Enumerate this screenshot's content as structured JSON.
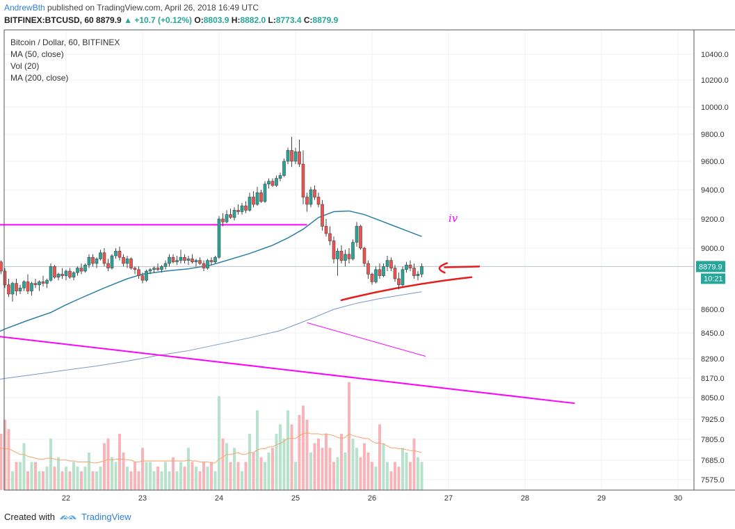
{
  "header": {
    "author": "AndrewBth",
    "published": "published on TradingView.com, April 26, 2018 16:49 UTC",
    "symbol": "BITFINEX:BTCUSD, 60",
    "price": "8879.9",
    "arrow": "▲",
    "change": "+10.7 (+0.12%)",
    "o_label": "O:",
    "o": "8803.9",
    "h_label": "H:",
    "h": "8882.0",
    "l_label": "L:",
    "l": "8773.4",
    "c_label": "C:",
    "c": "8879.9"
  },
  "legend": {
    "title": "Bitcoin / Dollar, 60, BITFINEX",
    "ma50": "MA (50, close)",
    "vol": "Vol (20)",
    "ma200": "MA (200, close)"
  },
  "footer": {
    "created_with": "Created with",
    "brand": "TradingView"
  },
  "annotation_text": "iv",
  "price_badge": "8879.9",
  "time_badge": "10:21",
  "colors": {
    "up": "#26a69a",
    "down": "#ef5350",
    "ma50": "#2a7fa8",
    "ma200": "#7b96c8",
    "magenta": "#ff00ff",
    "red_pen": "#e81a1a",
    "vol_up": "#b7e3cd",
    "vol_down": "#f7b5b9"
  },
  "chart_data": {
    "type": "candlestick",
    "title": "Bitcoin / Dollar, 60, BITFINEX",
    "y_tick_labels": [
      "10400.0",
      "10200.0",
      "10000.0",
      "9800.0",
      "9600.0",
      "9400.0",
      "9200.0",
      "9000.0",
      "8600.0",
      "8450.0",
      "8290.0",
      "8170.0",
      "8050.0",
      "7925.0",
      "7805.0",
      "7685.0",
      "7575.0"
    ],
    "y_ticks": [
      10400,
      10200,
      10000,
      9800,
      9600,
      9400,
      9200,
      9000,
      8600,
      8450,
      8290,
      8170,
      8050,
      7925,
      7805,
      7685,
      7575
    ],
    "x_tick_labels": [
      "22",
      "23",
      "24",
      "25",
      "26",
      "27",
      "28",
      "29",
      "30"
    ],
    "x_ticks": [
      22,
      23,
      24,
      25,
      26,
      27,
      28,
      29,
      30
    ],
    "xlim": [
      21.0,
      30.25
    ],
    "last_price": 8879.9,
    "candles": [
      [
        21.05,
        8870,
        8900,
        8820,
        8890
      ],
      [
        21.1,
        8890,
        8950,
        8860,
        8910
      ],
      [
        21.15,
        8910,
        8920,
        8830,
        8850
      ],
      [
        21.2,
        8850,
        8870,
        8740,
        8760
      ],
      [
        21.25,
        8760,
        8800,
        8680,
        8700
      ],
      [
        21.3,
        8700,
        8780,
        8650,
        8770
      ],
      [
        21.35,
        8770,
        8800,
        8690,
        8720
      ],
      [
        21.4,
        8720,
        8760,
        8700,
        8740
      ],
      [
        21.45,
        8740,
        8790,
        8720,
        8780
      ],
      [
        21.5,
        8780,
        8830,
        8700,
        8720
      ],
      [
        21.55,
        8720,
        8780,
        8690,
        8770
      ],
      [
        21.6,
        8770,
        8800,
        8740,
        8760
      ],
      [
        21.65,
        8760,
        8790,
        8720,
        8780
      ],
      [
        21.7,
        8780,
        8820,
        8750,
        8770
      ],
      [
        21.75,
        8770,
        8800,
        8740,
        8790
      ],
      [
        21.8,
        8790,
        8900,
        8780,
        8880
      ],
      [
        21.85,
        8880,
        8890,
        8800,
        8810
      ],
      [
        21.9,
        8810,
        8840,
        8790,
        8830
      ],
      [
        21.95,
        8830,
        8870,
        8800,
        8820
      ],
      [
        22.0,
        8820,
        8860,
        8790,
        8850
      ],
      [
        22.05,
        8850,
        8870,
        8800,
        8810
      ],
      [
        22.1,
        8810,
        8850,
        8790,
        8840
      ],
      [
        22.15,
        8840,
        8880,
        8820,
        8870
      ],
      [
        22.2,
        8870,
        8900,
        8830,
        8850
      ],
      [
        22.25,
        8850,
        8900,
        8840,
        8890
      ],
      [
        22.3,
        8890,
        8960,
        8870,
        8940
      ],
      [
        22.35,
        8940,
        8960,
        8880,
        8900
      ],
      [
        22.4,
        8900,
        8940,
        8870,
        8930
      ],
      [
        22.45,
        8930,
        8990,
        8920,
        8970
      ],
      [
        22.5,
        8970,
        9000,
        8880,
        8900
      ],
      [
        22.55,
        8900,
        8930,
        8850,
        8870
      ],
      [
        22.6,
        8870,
        8960,
        8860,
        8950
      ],
      [
        22.65,
        8950,
        9000,
        8930,
        8980
      ],
      [
        22.7,
        8980,
        9010,
        8920,
        8940
      ],
      [
        22.75,
        8940,
        8960,
        8880,
        8900
      ],
      [
        22.8,
        8900,
        8950,
        8870,
        8930
      ],
      [
        22.85,
        8930,
        8940,
        8860,
        8870
      ],
      [
        22.9,
        8870,
        8880,
        8830,
        8860
      ],
      [
        22.95,
        8860,
        8880,
        8800,
        8820
      ],
      [
        23.0,
        8820,
        8840,
        8770,
        8790
      ],
      [
        23.05,
        8790,
        8860,
        8780,
        8850
      ],
      [
        23.1,
        8850,
        8870,
        8830,
        8860
      ],
      [
        23.15,
        8860,
        8880,
        8840,
        8870
      ],
      [
        23.2,
        8870,
        8900,
        8850,
        8860
      ],
      [
        23.25,
        8860,
        8890,
        8840,
        8880
      ],
      [
        23.3,
        8880,
        8920,
        8860,
        8900
      ],
      [
        23.35,
        8900,
        8960,
        8880,
        8940
      ],
      [
        23.4,
        8940,
        8960,
        8900,
        8910
      ],
      [
        23.45,
        8910,
        8950,
        8890,
        8920
      ],
      [
        23.5,
        8920,
        8990,
        8900,
        8940
      ],
      [
        23.55,
        8940,
        8960,
        8900,
        8920
      ],
      [
        23.6,
        8920,
        8950,
        8890,
        8930
      ],
      [
        23.65,
        8930,
        8960,
        8900,
        8910
      ],
      [
        23.7,
        8910,
        8930,
        8880,
        8920
      ],
      [
        23.75,
        8920,
        8940,
        8890,
        8900
      ],
      [
        23.8,
        8900,
        8920,
        8850,
        8870
      ],
      [
        23.85,
        8870,
        8930,
        8860,
        8920
      ],
      [
        23.9,
        8920,
        8940,
        8890,
        8910
      ],
      [
        23.95,
        8910,
        8950,
        8900,
        8940
      ],
      [
        24.0,
        8940,
        9220,
        8930,
        9200
      ],
      [
        24.05,
        9200,
        9240,
        9150,
        9180
      ],
      [
        24.1,
        9180,
        9260,
        9170,
        9230
      ],
      [
        24.15,
        9230,
        9270,
        9200,
        9210
      ],
      [
        24.2,
        9210,
        9280,
        9190,
        9260
      ],
      [
        24.25,
        9260,
        9300,
        9230,
        9250
      ],
      [
        24.3,
        9250,
        9310,
        9230,
        9290
      ],
      [
        24.35,
        9290,
        9320,
        9240,
        9260
      ],
      [
        24.4,
        9260,
        9380,
        9250,
        9350
      ],
      [
        24.45,
        9350,
        9390,
        9280,
        9300
      ],
      [
        24.5,
        9300,
        9420,
        9290,
        9380
      ],
      [
        24.55,
        9380,
        9400,
        9310,
        9320
      ],
      [
        24.6,
        9320,
        9460,
        9310,
        9440
      ],
      [
        24.65,
        9440,
        9480,
        9410,
        9460
      ],
      [
        24.7,
        9460,
        9480,
        9420,
        9430
      ],
      [
        24.75,
        9430,
        9500,
        9420,
        9480
      ],
      [
        24.8,
        9480,
        9520,
        9460,
        9500
      ],
      [
        24.85,
        9500,
        9620,
        9490,
        9600
      ],
      [
        24.9,
        9600,
        9700,
        9580,
        9680
      ],
      [
        24.95,
        9680,
        9780,
        9560,
        9600
      ],
      [
        25.0,
        9600,
        9700,
        9580,
        9670
      ],
      [
        25.05,
        9670,
        9760,
        9560,
        9580
      ],
      [
        25.1,
        9580,
        9680,
        9300,
        9350
      ],
      [
        25.15,
        9350,
        9380,
        9250,
        9300
      ],
      [
        25.2,
        9300,
        9420,
        9280,
        9400
      ],
      [
        25.25,
        9400,
        9430,
        9330,
        9350
      ],
      [
        25.3,
        9350,
        9380,
        9280,
        9300
      ],
      [
        25.35,
        9300,
        9330,
        9120,
        9150
      ],
      [
        25.4,
        9150,
        9200,
        9080,
        9100
      ],
      [
        25.45,
        9100,
        9150,
        9020,
        9050
      ],
      [
        25.5,
        9050,
        9080,
        8900,
        8930
      ],
      [
        25.55,
        8930,
        9000,
        8820,
        8980
      ],
      [
        25.6,
        8980,
        9020,
        8900,
        8920
      ],
      [
        25.65,
        8920,
        8990,
        8880,
        8960
      ],
      [
        25.7,
        8960,
        9000,
        8900,
        8930
      ],
      [
        25.75,
        8930,
        9060,
        8920,
        9040
      ],
      [
        25.8,
        9040,
        9180,
        9010,
        9150
      ],
      [
        25.85,
        9150,
        9160,
        8990,
        9000
      ],
      [
        25.9,
        9000,
        9010,
        8880,
        8900
      ],
      [
        25.95,
        8900,
        8920,
        8800,
        8830
      ],
      [
        26.0,
        8830,
        8840,
        8760,
        8780
      ],
      [
        26.05,
        8780,
        8880,
        8770,
        8860
      ],
      [
        26.1,
        8860,
        8900,
        8800,
        8820
      ],
      [
        26.15,
        8820,
        8900,
        8810,
        8880
      ],
      [
        26.2,
        8880,
        8950,
        8850,
        8920
      ],
      [
        26.25,
        8920,
        8940,
        8850,
        8870
      ],
      [
        26.3,
        8870,
        8890,
        8780,
        8800
      ],
      [
        26.35,
        8800,
        8840,
        8730,
        8760
      ],
      [
        26.4,
        8760,
        8880,
        8750,
        8860
      ],
      [
        26.45,
        8860,
        8910,
        8840,
        8890
      ],
      [
        26.5,
        8890,
        8920,
        8850,
        8870
      ],
      [
        26.55,
        8870,
        8900,
        8800,
        8820
      ],
      [
        26.6,
        8820,
        8850,
        8790,
        8830
      ],
      [
        26.65,
        8830,
        8900,
        8810,
        8880
      ]
    ],
    "volume_ratio": [
      0.3,
      0.2,
      0.6,
      0.75,
      0.65,
      0.2,
      0.3,
      0.3,
      0.5,
      0.2,
      0.3,
      0.3,
      0.2,
      0.2,
      0.25,
      0.55,
      0.25,
      0.35,
      0.2,
      0.25,
      0.2,
      0.3,
      0.25,
      0.2,
      0.25,
      0.4,
      0.2,
      0.2,
      0.25,
      0.5,
      0.55,
      0.35,
      0.3,
      0.6,
      0.4,
      0.25,
      0.2,
      0.3,
      0.2,
      0.45,
      0.3,
      0.3,
      0.2,
      0.25,
      0.2,
      0.3,
      0.2,
      0.35,
      0.2,
      0.3,
      0.25,
      0.45,
      0.3,
      0.25,
      0.2,
      0.3,
      0.25,
      0.3,
      0.2,
      1.0,
      0.55,
      0.5,
      0.3,
      0.45,
      0.3,
      0.2,
      0.3,
      0.6,
      0.4,
      0.85,
      0.35,
      0.3,
      0.4,
      0.45,
      0.6,
      0.7,
      0.55,
      0.85,
      0.7,
      0.3,
      0.8,
      0.9,
      0.75,
      0.4,
      0.5,
      0.55,
      0.45,
      0.6,
      0.45,
      0.3,
      0.35,
      0.6,
      0.4,
      1.15,
      0.55,
      0.45,
      0.35,
      0.5,
      0.4,
      0.3,
      0.25,
      0.7,
      0.5,
      0.3,
      0.2,
      0.3,
      0.25,
      0.45,
      0.4,
      0.3,
      0.55,
      0.35,
      0.3,
      0.5,
      0.3
    ],
    "ma50": [
      [
        21.0,
        8430
      ],
      [
        21.2,
        8475
      ],
      [
        21.5,
        8530
      ],
      [
        21.8,
        8580
      ],
      [
        22.0,
        8630
      ],
      [
        22.2,
        8675
      ],
      [
        22.5,
        8740
      ],
      [
        22.8,
        8800
      ],
      [
        23.0,
        8830
      ],
      [
        23.3,
        8850
      ],
      [
        23.6,
        8865
      ],
      [
        23.9,
        8890
      ],
      [
        24.1,
        8920
      ],
      [
        24.4,
        8965
      ],
      [
        24.7,
        9020
      ],
      [
        24.9,
        9070
      ],
      [
        25.1,
        9130
      ],
      [
        25.3,
        9210
      ],
      [
        25.5,
        9250
      ],
      [
        25.7,
        9255
      ],
      [
        25.9,
        9230
      ],
      [
        26.1,
        9190
      ],
      [
        26.3,
        9150
      ],
      [
        26.5,
        9110
      ],
      [
        26.65,
        9080
      ]
    ],
    "ma200": [
      [
        21.0,
        8155
      ],
      [
        21.3,
        8175
      ],
      [
        21.7,
        8200
      ],
      [
        22.0,
        8220
      ],
      [
        22.4,
        8245
      ],
      [
        22.8,
        8275
      ],
      [
        23.2,
        8310
      ],
      [
        23.6,
        8340
      ],
      [
        24.0,
        8380
      ],
      [
        24.4,
        8420
      ],
      [
        24.8,
        8465
      ],
      [
        25.2,
        8540
      ],
      [
        25.5,
        8600
      ],
      [
        25.8,
        8640
      ],
      [
        26.1,
        8670
      ],
      [
        26.4,
        8695
      ],
      [
        26.65,
        8715
      ]
    ],
    "ma_vol": [
      0.45,
      0.42,
      0.45,
      0.44,
      0.44,
      0.42,
      0.4,
      0.38,
      0.38,
      0.36,
      0.35,
      0.34,
      0.33,
      0.33,
      0.34,
      0.34,
      0.33,
      0.32,
      0.32,
      0.32,
      0.31,
      0.31,
      0.3,
      0.3,
      0.3,
      0.3,
      0.29,
      0.29,
      0.3,
      0.31,
      0.33,
      0.32,
      0.33,
      0.33,
      0.33,
      0.32,
      0.32,
      0.3,
      0.3,
      0.31,
      0.31,
      0.31,
      0.31,
      0.31,
      0.31,
      0.31,
      0.31,
      0.31,
      0.31,
      0.31,
      0.31,
      0.32,
      0.31,
      0.31,
      0.3,
      0.3,
      0.3,
      0.29,
      0.29,
      0.33,
      0.35,
      0.38,
      0.38,
      0.39,
      0.4,
      0.38,
      0.38,
      0.4,
      0.4,
      0.43,
      0.44,
      0.44,
      0.46,
      0.46,
      0.48,
      0.5,
      0.52,
      0.55,
      0.55,
      0.55,
      0.58,
      0.6,
      0.61,
      0.6,
      0.6,
      0.6,
      0.59,
      0.6,
      0.59,
      0.58,
      0.56,
      0.55,
      0.56,
      0.6,
      0.58,
      0.57,
      0.56,
      0.55,
      0.55,
      0.52,
      0.5,
      0.5,
      0.49,
      0.47,
      0.45,
      0.45,
      0.44,
      0.44,
      0.43,
      0.42,
      0.42,
      0.41,
      0.4,
      0.4,
      0.39
    ]
  }
}
